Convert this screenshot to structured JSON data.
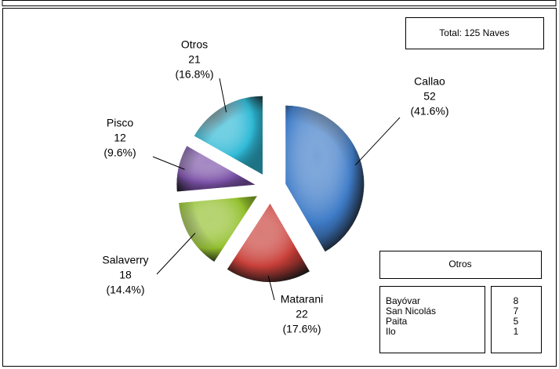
{
  "chart_data": {
    "type": "pie",
    "title": "Total: 125 Naves",
    "categories": [
      "Callao",
      "Matarani",
      "Salaverry",
      "Pisco",
      "Otros"
    ],
    "values": [
      52,
      22,
      18,
      12,
      21
    ],
    "percent_labels": [
      "(41.6%)",
      "(17.6%)",
      "(14.4%)",
      "(9.6%)",
      "(16.8%)"
    ],
    "colors": [
      "#3f7cc8",
      "#c9403a",
      "#93c02e",
      "#7b52a8",
      "#2fb9d6"
    ],
    "breakdown": {
      "title": "Otros",
      "names": [
        "Bayóvar",
        "San Nicolás",
        "Paita",
        "Ilo"
      ],
      "values": [
        8,
        7,
        5,
        1
      ]
    }
  }
}
